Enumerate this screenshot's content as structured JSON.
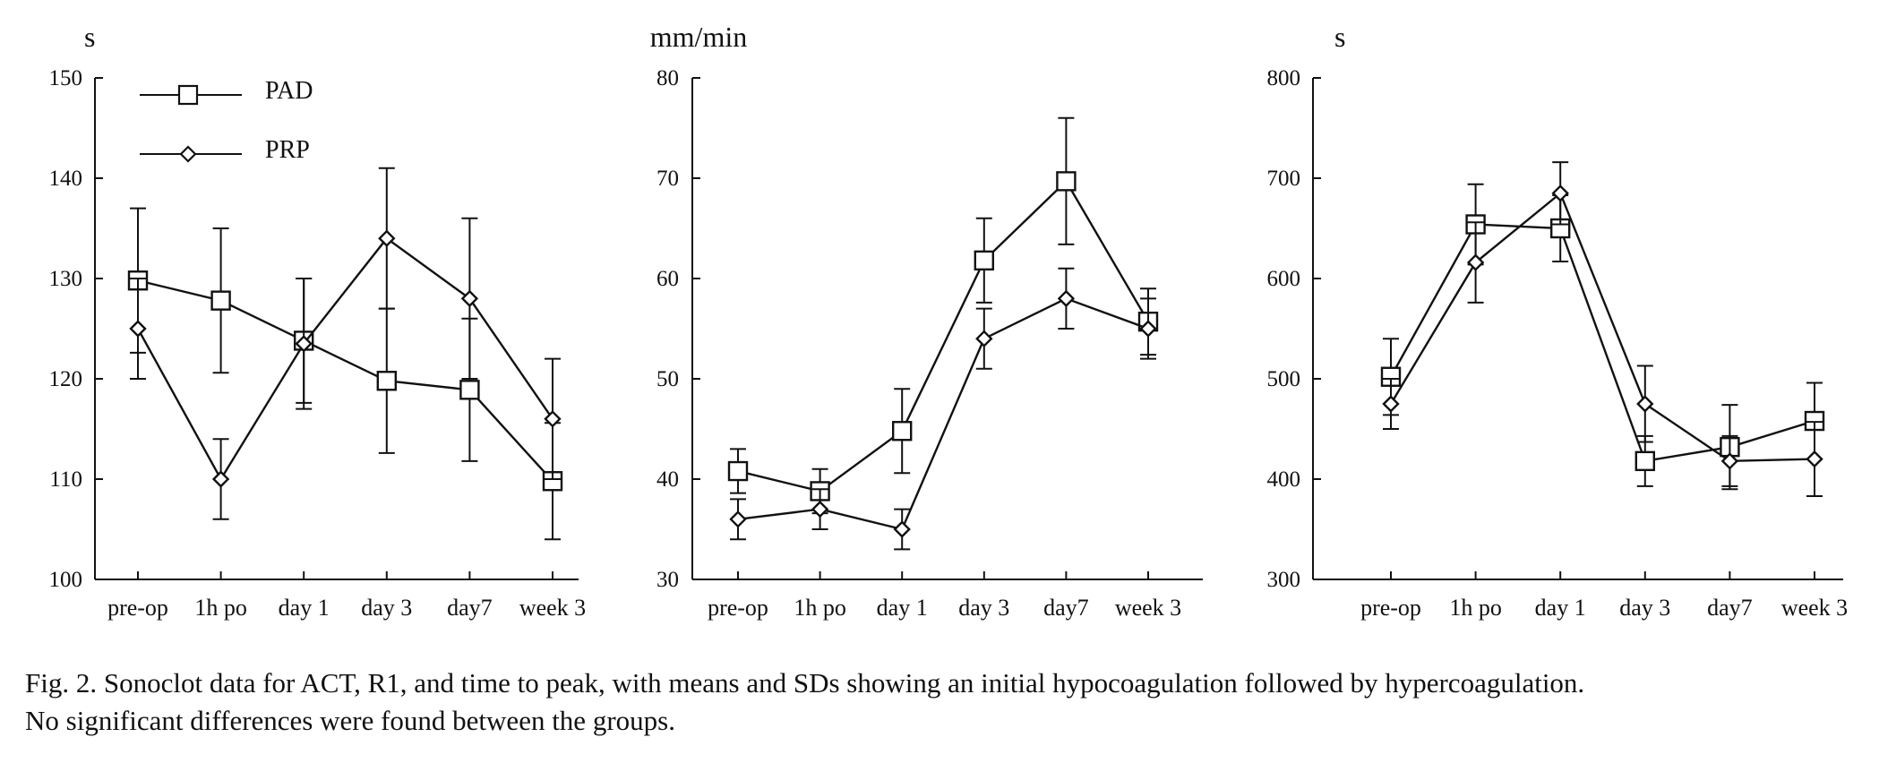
{
  "legend": {
    "entries": [
      {
        "label": "PAD",
        "marker": "square"
      },
      {
        "label": "PRP",
        "marker": "diamond"
      }
    ]
  },
  "caption": {
    "line1": "Fig. 2.   Sonoclot data for ACT, R1, and time to peak, with means and SDs showing an initial hypocoagulation followed by hypercoagulation.",
    "line2": "No significant differences were found between the groups."
  },
  "chart_data": [
    {
      "type": "line",
      "ylabel": "s",
      "ylim": [
        100,
        150
      ],
      "yticks": [
        "100",
        "110",
        "120",
        "130",
        "140",
        "150"
      ],
      "categories": [
        "pre-op",
        "1h po",
        "day 1",
        "day 3",
        "day7",
        "week 3"
      ],
      "grid": false,
      "legend": "top-left",
      "series": [
        {
          "name": "PAD",
          "marker": "square",
          "values": [
            129.8,
            127.8,
            123.8,
            119.8,
            118.9,
            109.8
          ],
          "sd": [
            7.2,
            7.2,
            6.2,
            7.2,
            7.1,
            5.8
          ]
        },
        {
          "name": "PRP",
          "marker": "diamond",
          "values": [
            125.0,
            110.0,
            123.5,
            134.0,
            128.0,
            116.0
          ],
          "sd": [
            5.0,
            4.0,
            6.5,
            7.0,
            8.0,
            6.0
          ]
        }
      ]
    },
    {
      "type": "line",
      "ylabel": "mm/min",
      "ylim": [
        30,
        80
      ],
      "yticks": [
        "30",
        "40",
        "50",
        "60",
        "70",
        "80"
      ],
      "categories": [
        "pre-op",
        "1h po",
        "day 1",
        "day 3",
        "day7",
        "week 3"
      ],
      "grid": false,
      "series": [
        {
          "name": "PAD",
          "marker": "square",
          "values": [
            40.8,
            38.8,
            44.8,
            61.8,
            69.7,
            55.7
          ],
          "sd": [
            2.2,
            2.2,
            4.2,
            4.2,
            6.3,
            3.3
          ]
        },
        {
          "name": "PRP",
          "marker": "diamond",
          "values": [
            36.0,
            37.0,
            35.0,
            54.0,
            58.0,
            55.0
          ],
          "sd": [
            2.0,
            2.0,
            2.0,
            3.0,
            3.0,
            3.0
          ]
        }
      ]
    },
    {
      "type": "line",
      "ylabel": "s",
      "ylim": [
        300,
        800
      ],
      "yticks": [
        "300",
        "400",
        "500",
        "600",
        "700",
        "800"
      ],
      "categories": [
        "pre-op",
        "1h po",
        "day 1",
        "day 3",
        "day7",
        "week 3"
      ],
      "grid": false,
      "series": [
        {
          "name": "PAD",
          "marker": "square",
          "values": [
            502,
            654,
            650,
            418,
            432,
            458
          ],
          "sd": [
            38,
            40,
            33,
            25,
            42,
            38
          ]
        },
        {
          "name": "PRP",
          "marker": "diamond",
          "values": [
            475,
            616,
            685,
            475,
            418,
            420
          ],
          "sd": [
            25,
            40,
            31,
            38,
            25,
            37
          ]
        }
      ]
    }
  ]
}
